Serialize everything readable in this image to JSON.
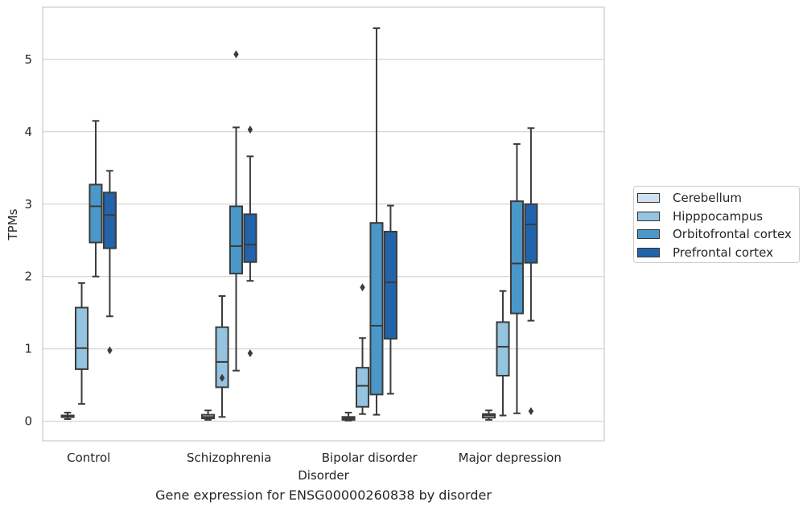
{
  "chart_data": {
    "type": "box",
    "title": "",
    "caption": "Gene expression for ENSG00000260838 by disorder",
    "xlabel": "Disorder",
    "ylabel": "TPMs",
    "ylim": [
      -0.27,
      5.72
    ],
    "yticks": [
      0,
      1,
      2,
      3,
      4,
      5
    ],
    "grid": "horizontal",
    "legend_position": "right",
    "categories": [
      "Control",
      "Schizophrenia",
      "Bipolar disorder",
      "Major depression"
    ],
    "series": [
      {
        "name": "Cerebellum",
        "color": "#d0e1f2",
        "boxes": [
          {
            "min": 0.03,
            "q1": 0.06,
            "median": 0.07,
            "q3": 0.08,
            "max": 0.12,
            "outliers": []
          },
          {
            "min": 0.02,
            "q1": 0.04,
            "median": 0.06,
            "q3": 0.09,
            "max": 0.15,
            "outliers": []
          },
          {
            "min": 0.01,
            "q1": 0.02,
            "median": 0.04,
            "q3": 0.06,
            "max": 0.12,
            "outliers": []
          },
          {
            "min": 0.02,
            "q1": 0.05,
            "median": 0.08,
            "q3": 0.1,
            "max": 0.15,
            "outliers": []
          }
        ]
      },
      {
        "name": "Hipppocampus",
        "color": "#94c4df",
        "boxes": [
          {
            "min": 0.24,
            "q1": 0.72,
            "median": 1.01,
            "q3": 1.57,
            "max": 1.91,
            "outliers": []
          },
          {
            "min": 0.06,
            "q1": 0.47,
            "median": 0.82,
            "q3": 1.3,
            "max": 1.73,
            "outliers": [
              0.6
            ]
          },
          {
            "min": 0.1,
            "q1": 0.2,
            "median": 0.49,
            "q3": 0.74,
            "max": 1.15,
            "outliers": [
              1.85
            ]
          },
          {
            "min": 0.08,
            "q1": 0.63,
            "median": 1.03,
            "q3": 1.37,
            "max": 1.8,
            "outliers": []
          }
        ]
      },
      {
        "name": "Orbitofrontal cortex",
        "color": "#4a98c9",
        "boxes": [
          {
            "min": 2.0,
            "q1": 2.47,
            "median": 2.97,
            "q3": 3.27,
            "max": 4.15,
            "outliers": []
          },
          {
            "min": 0.7,
            "q1": 2.04,
            "median": 2.42,
            "q3": 2.97,
            "max": 4.06,
            "outliers": [
              5.07
            ]
          },
          {
            "min": 0.09,
            "q1": 0.37,
            "median": 1.32,
            "q3": 2.74,
            "max": 5.43,
            "outliers": []
          },
          {
            "min": 0.11,
            "q1": 1.49,
            "median": 2.18,
            "q3": 3.04,
            "max": 3.83,
            "outliers": []
          }
        ]
      },
      {
        "name": "Prefrontal cortex",
        "color": "#2164ab",
        "boxes": [
          {
            "min": 1.45,
            "q1": 2.39,
            "median": 2.85,
            "q3": 3.16,
            "max": 3.46,
            "outliers": [
              0.98
            ]
          },
          {
            "min": 1.94,
            "q1": 2.2,
            "median": 2.44,
            "q3": 2.86,
            "max": 3.66,
            "outliers": [
              0.94,
              4.03
            ]
          },
          {
            "min": 0.38,
            "q1": 1.14,
            "median": 1.92,
            "q3": 2.62,
            "max": 2.98,
            "outliers": []
          },
          {
            "min": 1.39,
            "q1": 2.19,
            "median": 2.72,
            "q3": 3.0,
            "max": 4.05,
            "outliers": [
              0.14
            ]
          }
        ]
      }
    ]
  }
}
